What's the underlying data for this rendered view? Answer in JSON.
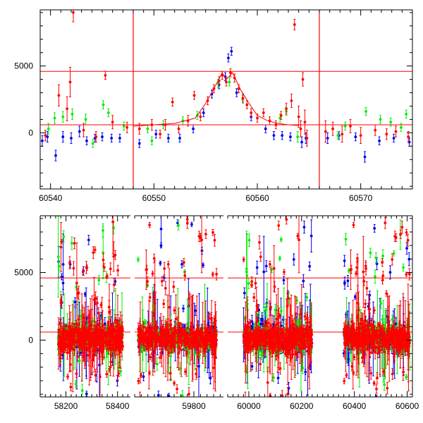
{
  "colors": {
    "red": "#ff0000",
    "green": "#00ee00",
    "blue": "#0000ee",
    "frame": "#000000"
  },
  "chart_data": [
    {
      "type": "scatter",
      "title": "",
      "xlabel": "",
      "ylabel": "",
      "xlim": [
        60539,
        60575
      ],
      "ylim": [
        -4200,
        9200
      ],
      "xtick_labels": [
        "60540",
        "60550",
        "60560",
        "60570"
      ],
      "xticks": [
        60540,
        60550,
        60560,
        60570
      ],
      "ytick_labels": [
        "0",
        "5000"
      ],
      "yticks": [
        0,
        5000
      ],
      "hlines": [
        4600,
        600
      ],
      "vlines": [
        60548,
        60566
      ],
      "series": [
        {
          "color": "red",
          "points": [
            [
              60539.5,
              -200,
              400
            ],
            [
              60540.8,
              2800,
              800
            ],
            [
              60541.6,
              1800,
              900
            ],
            [
              60541.9,
              3800,
              1100
            ],
            [
              60542.2,
              9000,
              700
            ],
            [
              60543.2,
              200,
              500
            ],
            [
              60544.4,
              -300,
              400
            ],
            [
              60545.3,
              4300,
              300
            ],
            [
              60546.0,
              800,
              500
            ],
            [
              60547.4,
              400,
              400
            ],
            [
              60548.6,
              300,
              400
            ],
            [
              60549.8,
              600,
              400
            ],
            [
              60550.6,
              -100,
              300
            ],
            [
              60551.1,
              600,
              400
            ],
            [
              60551.8,
              2300,
              300
            ],
            [
              60552.4,
              300,
              300
            ],
            [
              60553.3,
              900,
              400
            ],
            [
              60553.9,
              2800,
              300
            ],
            [
              60554.5,
              1200,
              300
            ],
            [
              60555.2,
              2400,
              300
            ],
            [
              60555.8,
              3300,
              300
            ],
            [
              60556.3,
              3900,
              300
            ],
            [
              60556.6,
              4300,
              300
            ],
            [
              60557.0,
              3800,
              300
            ],
            [
              60557.4,
              4500,
              300
            ],
            [
              60557.8,
              4100,
              300
            ],
            [
              60558.2,
              3300,
              300
            ],
            [
              60558.6,
              2600,
              300
            ],
            [
              60559.0,
              2100,
              300
            ],
            [
              60559.4,
              1500,
              300
            ],
            [
              60560.0,
              1100,
              300
            ],
            [
              60560.6,
              1500,
              300
            ],
            [
              60561.2,
              900,
              300
            ],
            [
              60561.8,
              600,
              300
            ],
            [
              60562.3,
              1300,
              300
            ],
            [
              60562.8,
              1800,
              400
            ],
            [
              60563.3,
              2400,
              500
            ],
            [
              60563.6,
              8100,
              400
            ],
            [
              60564.0,
              1200,
              800
            ],
            [
              60564.2,
              300,
              600
            ],
            [
              60564.4,
              4000,
              500
            ],
            [
              60564.6,
              800,
              900
            ],
            [
              60564.8,
              -400,
              600
            ],
            [
              60566.6,
              100,
              800
            ],
            [
              60567.3,
              300,
              500
            ],
            [
              60568.2,
              -100,
              600
            ],
            [
              60569.0,
              500,
              500
            ],
            [
              60570.0,
              -200,
              600
            ],
            [
              60571.4,
              200,
              400
            ],
            [
              60572.5,
              -100,
              400
            ],
            [
              60573.4,
              100,
              400
            ],
            [
              60574.6,
              -300,
              400
            ]
          ]
        },
        {
          "color": "green",
          "points": [
            [
              60539.8,
              300,
              400
            ],
            [
              60540.4,
              1100,
              400
            ],
            [
              60541.2,
              1200,
              400
            ],
            [
              60542.1,
              1400,
              400
            ],
            [
              60543.4,
              1000,
              400
            ],
            [
              60544.1,
              -800,
              300
            ],
            [
              60545.1,
              2100,
              300
            ],
            [
              60545.6,
              1500,
              300
            ],
            [
              60547.1,
              500,
              300
            ],
            [
              60549.4,
              300,
              300
            ],
            [
              60549.8,
              -600,
              300
            ],
            [
              60550.9,
              600,
              300
            ],
            [
              60552.8,
              900,
              300
            ],
            [
              60554.2,
              1300,
              300
            ],
            [
              60556.2,
              3700,
              300
            ],
            [
              60557.3,
              3800,
              300
            ],
            [
              60558.6,
              2500,
              300
            ],
            [
              60562.2,
              1100,
              300
            ],
            [
              60562.8,
              1600,
              300
            ],
            [
              60563.9,
              -300,
              400
            ],
            [
              60567.8,
              -200,
              300
            ],
            [
              60568.5,
              500,
              300
            ],
            [
              60570.5,
              1600,
              300
            ],
            [
              60571.9,
              1000,
              300
            ],
            [
              60572.9,
              800,
              300
            ],
            [
              60573.9,
              400,
              300
            ],
            [
              60574.4,
              1400,
              300
            ]
          ]
        },
        {
          "color": "blue",
          "points": [
            [
              60539.2,
              -600,
              400
            ],
            [
              60539.7,
              -300,
              400
            ],
            [
              60540.5,
              -1700,
              400
            ],
            [
              60541.2,
              -300,
              400
            ],
            [
              60542.0,
              -400,
              400
            ],
            [
              60542.8,
              100,
              400
            ],
            [
              60543.5,
              -600,
              300
            ],
            [
              60544.3,
              -400,
              300
            ],
            [
              60545.0,
              -300,
              300
            ],
            [
              60545.9,
              -400,
              300
            ],
            [
              60546.7,
              -400,
              300
            ],
            [
              60548.6,
              -800,
              300
            ],
            [
              60550.2,
              -100,
              300
            ],
            [
              60551.4,
              -400,
              300
            ],
            [
              60552.5,
              -400,
              300
            ],
            [
              60553.8,
              300,
              300
            ],
            [
              60554.8,
              1500,
              300
            ],
            [
              60555.6,
              2900,
              300
            ],
            [
              60556.3,
              3600,
              300
            ],
            [
              60556.9,
              4200,
              300
            ],
            [
              60557.2,
              5600,
              300
            ],
            [
              60557.5,
              6100,
              300
            ],
            [
              60558.0,
              3000,
              300
            ],
            [
              60559.4,
              1200,
              300
            ],
            [
              60560.8,
              300,
              300
            ],
            [
              60561.6,
              -200,
              300
            ],
            [
              60562.4,
              -200,
              300
            ],
            [
              60563.2,
              -300,
              300
            ],
            [
              60564.3,
              -700,
              400
            ],
            [
              60564.7,
              -400,
              400
            ],
            [
              60566.8,
              -400,
              400
            ],
            [
              60567.9,
              -200,
              300
            ],
            [
              60569.5,
              -300,
              300
            ],
            [
              60570.4,
              -1800,
              400
            ],
            [
              60571.8,
              -600,
              300
            ],
            [
              60573.2,
              -400,
              300
            ],
            [
              60574.7,
              -700,
              300
            ]
          ]
        }
      ],
      "model_curve": [
        [
          60548,
          500
        ],
        [
          60550,
          600
        ],
        [
          60552,
          700
        ],
        [
          60554,
          1100
        ],
        [
          60555,
          2200
        ],
        [
          60555.8,
          3300
        ],
        [
          60556.6,
          4500
        ],
        [
          60557.0,
          4000
        ],
        [
          60557.6,
          4500
        ],
        [
          60558.4,
          3200
        ],
        [
          60559.2,
          2200
        ],
        [
          60560,
          1300
        ],
        [
          60561,
          900
        ],
        [
          60562,
          700
        ],
        [
          60563,
          600
        ],
        [
          60564,
          550
        ]
      ]
    },
    {
      "type": "scatter",
      "title": "",
      "xlabel": "",
      "ylabel": "",
      "ylim": [
        -4200,
        9200
      ],
      "xtick_labels": [
        "58200",
        "58400",
        "59800",
        "60000",
        "60200",
        "60400",
        "60600"
      ],
      "xticks": [
        58200,
        58400,
        59800,
        60000,
        60200,
        60400,
        60600
      ],
      "ytick_labels": [
        "0",
        "5000"
      ],
      "yticks": [
        0,
        5000
      ],
      "hlines": [
        4600,
        600
      ],
      "segments": [
        {
          "xlim": [
            58100,
            58450
          ],
          "data_xlim": [
            58170,
            58420
          ]
        },
        {
          "xlim": [
            59620,
            59890
          ],
          "data_xlim": [
            59630,
            59870
          ]
        },
        {
          "xlim": [
            59920,
            60620
          ],
          "data_xlim": [
            [
              59980,
              60240
            ],
            [
              60360,
              60610
            ]
          ]
        }
      ],
      "series": [
        {
          "color": "red",
          "name": ""
        },
        {
          "color": "green",
          "name": ""
        },
        {
          "color": "blue",
          "name": ""
        }
      ]
    }
  ]
}
